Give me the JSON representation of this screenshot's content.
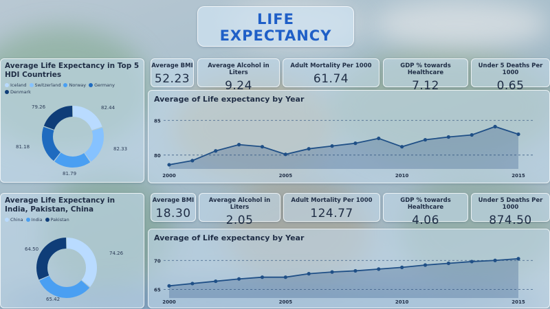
{
  "header": {
    "title_line1": "LIFE",
    "title_line2": "EXPECTANCY"
  },
  "section_top": {
    "donut": {
      "title": "Average Life Expectancy in Top 5 HDI Countries",
      "legend": [
        {
          "label": "Iceland",
          "color": "#b9dbff"
        },
        {
          "label": "Switzerland",
          "color": "#86c2ff"
        },
        {
          "label": "Norway",
          "color": "#4a9ff2"
        },
        {
          "label": "Germany",
          "color": "#1f6bbf"
        },
        {
          "label": "Denmark",
          "color": "#0f3d78"
        }
      ],
      "slice_labels": [
        "82.44",
        "82.33",
        "81.79",
        "81.18",
        "79.26"
      ]
    },
    "kpis": [
      {
        "label": "Average BMI",
        "value": "52.23"
      },
      {
        "label": "Average Alcohol in Liters",
        "value": "9.24"
      },
      {
        "label": "Adult Mortality Per 1000",
        "value": "61.74"
      },
      {
        "label": "GDP % towards Healthcare",
        "value": "7.12"
      },
      {
        "label": "Under 5 Deaths Per 1000",
        "value": "0.65"
      }
    ]
  },
  "section_bottom": {
    "donut": {
      "title": "Average Life Expectancy in India, Pakistan, China",
      "legend": [
        {
          "label": "China",
          "color": "#b9dbff"
        },
        {
          "label": "India",
          "color": "#4a9ff2"
        },
        {
          "label": "Pakistan",
          "color": "#0f3d78"
        }
      ],
      "slice_labels": [
        "74.26",
        "65.42",
        "64.50"
      ]
    },
    "kpis": [
      {
        "label": "Average BMI",
        "value": "18.30"
      },
      {
        "label": "Average Alcohol in Liters",
        "value": "2.05"
      },
      {
        "label": "Adult Mortality Per 1000",
        "value": "124.77"
      },
      {
        "label": "GDP % towards Healthcare",
        "value": "4.06"
      },
      {
        "label": "Under 5 Deaths Per 1000",
        "value": "874.50"
      }
    ]
  },
  "chart_data": [
    {
      "type": "area",
      "title": "Average of Life expectancy by Year",
      "xlabel": "",
      "ylabel": "",
      "x": [
        2000,
        2001,
        2002,
        2003,
        2004,
        2005,
        2006,
        2007,
        2008,
        2009,
        2010,
        2011,
        2012,
        2013,
        2014,
        2015
      ],
      "values": [
        78.6,
        79.2,
        80.6,
        81.5,
        81.2,
        80.1,
        80.9,
        81.3,
        81.7,
        82.4,
        81.2,
        82.2,
        82.6,
        82.9,
        84.1,
        83.0
      ],
      "ylim": [
        78,
        87.5
      ],
      "xticks": [
        2000,
        2005,
        2010,
        2015
      ],
      "yticks": [
        80,
        85
      ],
      "grid": true
    },
    {
      "type": "area",
      "title": "Average of Life expectancy by Year",
      "xlabel": "",
      "ylabel": "",
      "x": [
        2000,
        2001,
        2002,
        2003,
        2004,
        2005,
        2006,
        2007,
        2008,
        2009,
        2010,
        2011,
        2012,
        2013,
        2014,
        2015
      ],
      "values": [
        65.6,
        66.0,
        66.4,
        66.8,
        67.1,
        67.1,
        67.7,
        68.0,
        68.2,
        68.5,
        68.8,
        69.2,
        69.5,
        69.8,
        70.0,
        70.3
      ],
      "ylim": [
        63.5,
        73
      ],
      "xticks": [
        2000,
        2005,
        2010,
        2015
      ],
      "yticks": [
        65,
        70
      ],
      "grid": true
    }
  ]
}
